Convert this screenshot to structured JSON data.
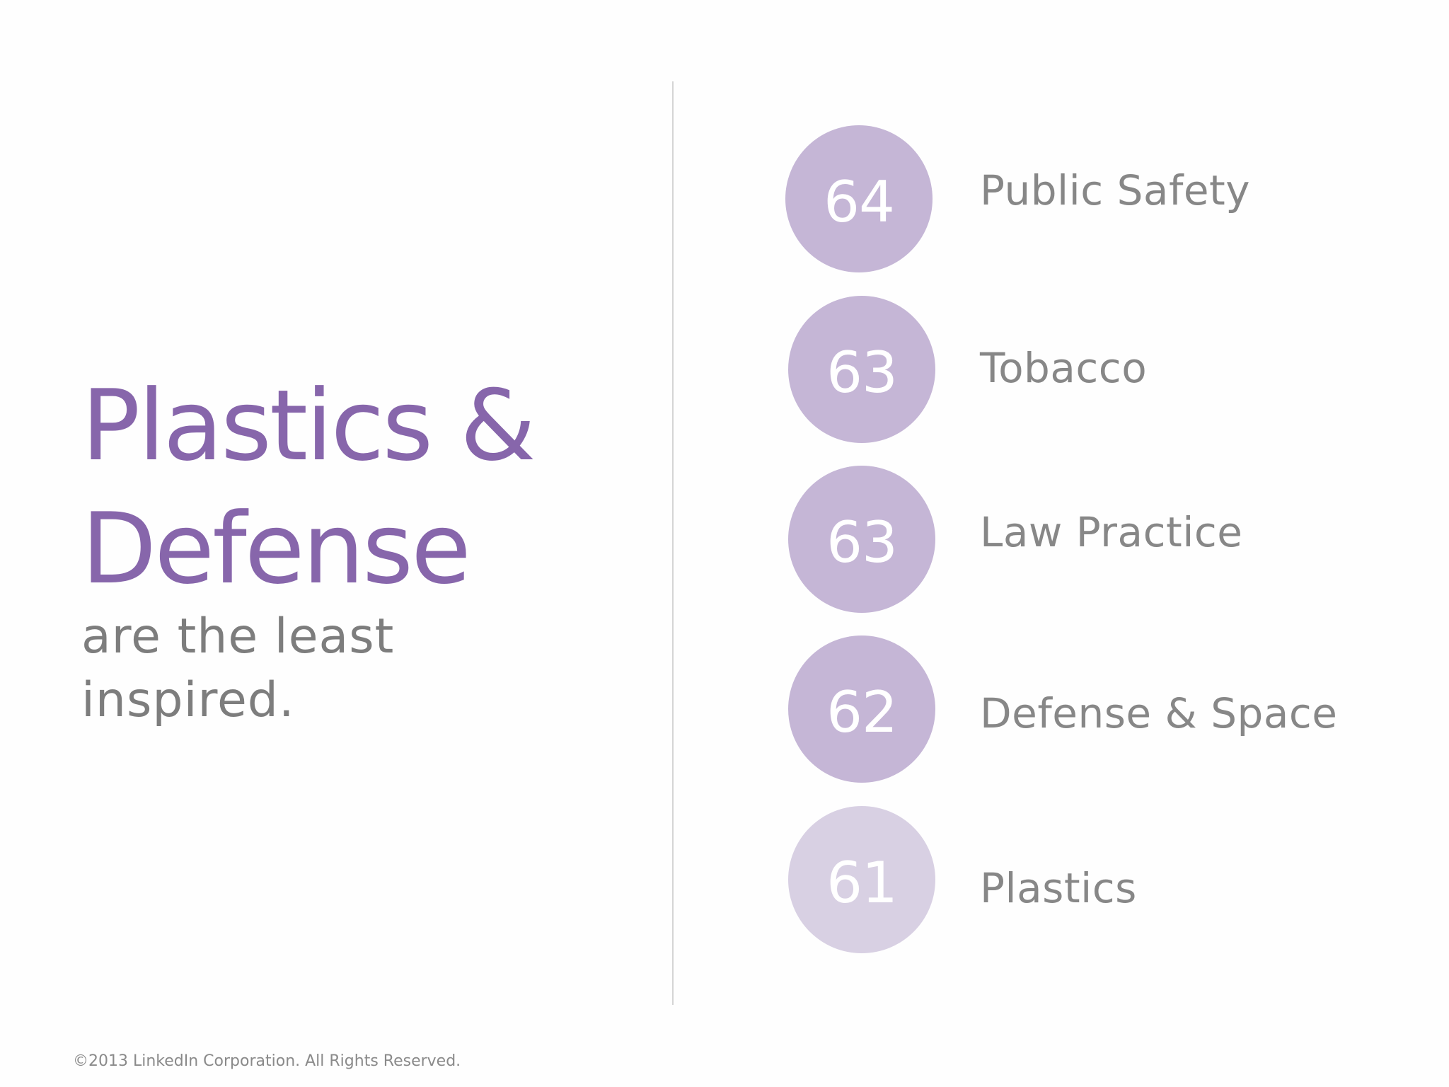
{
  "headline": {
    "line1": "Plastics &",
    "line2": "Defense",
    "color": "#8766ab"
  },
  "subline": {
    "line1": "are the least",
    "line2": "inspired."
  },
  "rankings": [
    {
      "score": "64",
      "industry": "Public Safety"
    },
    {
      "score": "63",
      "industry": "Tobacco"
    },
    {
      "score": "63",
      "industry": "Law Practice"
    },
    {
      "score": "62",
      "industry": "Defense & Space"
    },
    {
      "score": "61",
      "industry": "Plastics"
    }
  ],
  "colors": {
    "circle": "#c5b6d6",
    "circle_light": "#d8d0e3",
    "text_gray": "#878787"
  },
  "footer": {
    "copyright": "©2013 LinkedIn Corporation. All Rights Reserved."
  }
}
